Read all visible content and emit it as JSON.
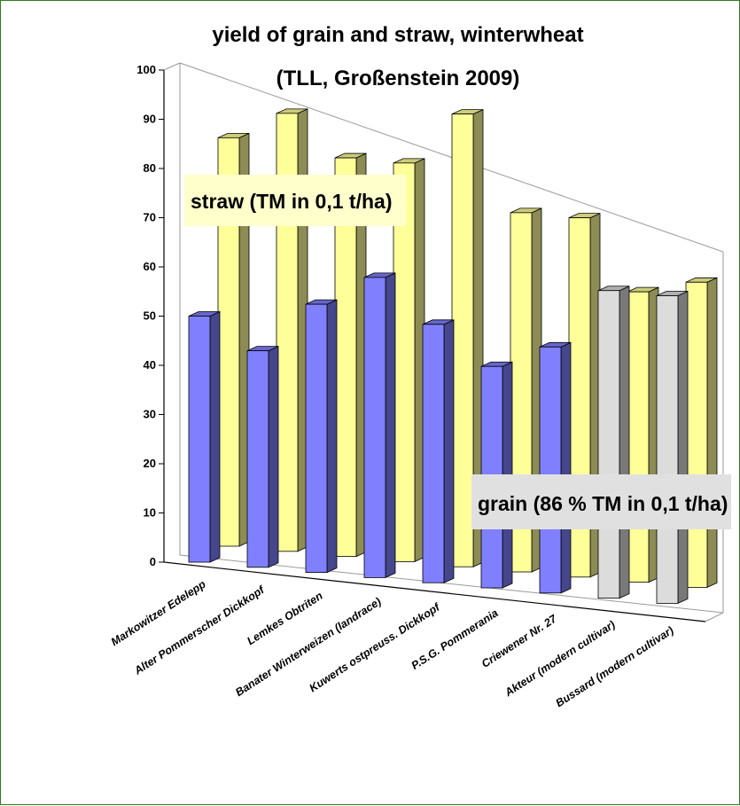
{
  "chart_data": {
    "type": "bar",
    "title": [
      "yield of grain and straw,  winterwheat",
      "(TLL, Großenstein  2009)"
    ],
    "xlabel": "",
    "ylabel": "",
    "ylim": [
      0,
      100
    ],
    "yticks": [
      0,
      10,
      20,
      30,
      40,
      50,
      60,
      70,
      80,
      90,
      100
    ],
    "categories": [
      "Markowitzer Edelepp",
      "Alter Pommerscher Dickkopf",
      "Lemkes Obtriten",
      "Banater Winterweizen (landrace)",
      "Kuwerts ostpreuss.  Dickkopf",
      "P.S.G. Pommerania",
      "Criewener Nr. 27",
      "Akteur (modern cultivar)",
      "Bussard (modern cultivar)"
    ],
    "series": [
      {
        "name": "grain (86 % TM in 0,1 t/ha)",
        "values": [
          50,
          44,
          54.5,
          61,
          52.5,
          45,
          50,
          62.5,
          62.5
        ],
        "colors": [
          "#8080ff",
          "#8080ff",
          "#8080ff",
          "#8080ff",
          "#8080ff",
          "#8080ff",
          "#8080ff",
          "#dcdcdc",
          "#dcdcdc"
        ]
      },
      {
        "name": "straw (TM in 0,1 t/ha)",
        "values": [
          83,
          89,
          81,
          81,
          92,
          73,
          73,
          59,
          62
        ],
        "color": "#ffff99"
      }
    ],
    "grid": false,
    "legend": "callout labels inside plot"
  }
}
